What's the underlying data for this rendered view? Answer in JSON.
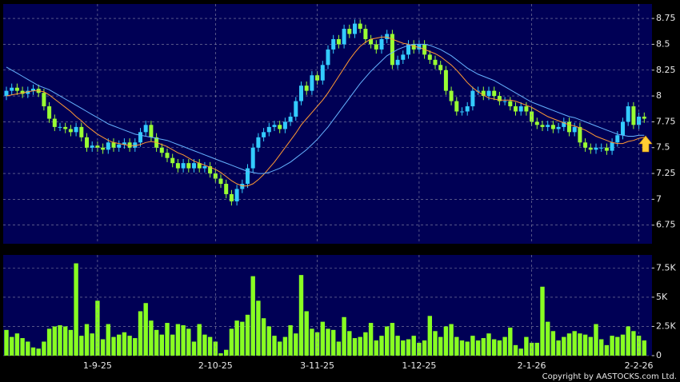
{
  "chart_data": [
    {
      "type": "candlestick",
      "up_color": "#33ccff",
      "down_color": "#99ff33",
      "open": [
        8.0,
        8.05,
        8.08,
        8.05,
        8.02,
        8.05,
        8.07,
        8.03,
        7.9,
        7.78,
        7.7,
        7.7,
        7.68,
        7.65,
        7.7,
        7.6,
        7.5,
        7.52,
        7.5,
        7.48,
        7.55,
        7.5,
        7.53,
        7.55,
        7.5,
        7.55,
        7.65,
        7.72,
        7.6,
        7.5,
        7.45,
        7.4,
        7.35,
        7.3,
        7.35,
        7.3,
        7.35,
        7.3,
        7.32,
        7.25,
        7.2,
        7.15,
        7.05,
        6.98,
        7.1,
        7.15,
        7.3,
        7.5,
        7.6,
        7.65,
        7.7,
        7.72,
        7.68,
        7.75,
        7.8,
        7.95,
        8.1,
        8.05,
        8.2,
        8.15,
        8.3,
        8.45,
        8.55,
        8.5,
        8.65,
        8.6,
        8.7,
        8.65,
        8.55,
        8.5,
        8.45,
        8.55,
        8.6,
        8.3,
        8.35,
        8.4,
        8.5,
        8.45,
        8.5,
        8.4,
        8.35,
        8.3,
        8.25,
        8.05,
        7.95,
        7.85,
        7.85,
        7.9,
        8.05,
        8.05,
        8.0,
        8.05,
        8.0,
        7.95,
        7.95,
        7.9,
        7.85,
        7.9,
        7.85,
        7.75,
        7.72,
        7.7,
        7.72,
        7.68,
        7.7,
        7.75,
        7.65,
        7.7,
        7.55,
        7.5,
        7.48,
        7.5,
        7.5,
        7.47,
        7.55,
        7.62,
        7.75,
        7.9,
        7.72,
        7.8
      ],
      "high": [
        8.09,
        8.12,
        8.12,
        8.09,
        8.09,
        8.11,
        8.11,
        8.07,
        7.94,
        7.82,
        7.74,
        7.74,
        7.72,
        7.74,
        7.74,
        7.64,
        7.56,
        7.56,
        7.54,
        7.59,
        7.59,
        7.57,
        7.59,
        7.59,
        7.59,
        7.69,
        7.76,
        7.76,
        7.64,
        7.54,
        7.49,
        7.44,
        7.39,
        7.39,
        7.39,
        7.39,
        7.39,
        7.36,
        7.36,
        7.29,
        7.24,
        7.19,
        7.09,
        7.14,
        7.19,
        7.34,
        7.54,
        7.64,
        7.69,
        7.74,
        7.76,
        7.76,
        7.79,
        7.84,
        7.99,
        8.14,
        8.14,
        8.24,
        8.24,
        8.34,
        8.49,
        8.59,
        8.59,
        8.69,
        8.69,
        8.74,
        8.74,
        8.69,
        8.59,
        8.54,
        8.59,
        8.64,
        8.64,
        8.39,
        8.44,
        8.54,
        8.54,
        8.54,
        8.54,
        8.44,
        8.39,
        8.34,
        8.29,
        8.09,
        7.99,
        7.89,
        7.94,
        8.09,
        8.09,
        8.09,
        8.09,
        8.09,
        8.04,
        7.99,
        7.99,
        7.94,
        7.94,
        7.94,
        7.89,
        7.79,
        7.76,
        7.76,
        7.76,
        7.74,
        7.79,
        7.79,
        7.74,
        7.74,
        7.59,
        7.54,
        7.54,
        7.54,
        7.54,
        7.59,
        7.66,
        7.79,
        7.94,
        7.94,
        7.84,
        7.84
      ],
      "low": [
        7.96,
        8.01,
        8.01,
        7.98,
        7.98,
        8.01,
        7.99,
        7.86,
        7.74,
        7.66,
        7.66,
        7.64,
        7.61,
        7.61,
        7.56,
        7.46,
        7.46,
        7.46,
        7.44,
        7.44,
        7.46,
        7.46,
        7.49,
        7.46,
        7.46,
        7.51,
        7.61,
        7.56,
        7.46,
        7.41,
        7.36,
        7.31,
        7.26,
        7.26,
        7.26,
        7.26,
        7.26,
        7.26,
        7.21,
        7.16,
        7.11,
        7.01,
        6.94,
        6.94,
        7.06,
        7.11,
        7.26,
        7.46,
        7.56,
        7.61,
        7.66,
        7.64,
        7.64,
        7.71,
        7.76,
        7.91,
        8.01,
        8.01,
        8.11,
        8.11,
        8.26,
        8.41,
        8.46,
        8.46,
        8.56,
        8.56,
        8.61,
        8.51,
        8.46,
        8.41,
        8.41,
        8.51,
        8.26,
        8.26,
        8.31,
        8.36,
        8.41,
        8.41,
        8.36,
        8.31,
        8.26,
        8.21,
        8.01,
        7.91,
        7.81,
        7.81,
        7.81,
        7.86,
        8.01,
        7.96,
        7.96,
        7.96,
        7.91,
        7.91,
        7.86,
        7.81,
        7.81,
        7.81,
        7.71,
        7.68,
        7.66,
        7.66,
        7.64,
        7.64,
        7.66,
        7.61,
        7.61,
        7.51,
        7.46,
        7.44,
        7.44,
        7.46,
        7.43,
        7.43,
        7.51,
        7.58,
        7.71,
        7.68,
        7.68,
        7.74
      ],
      "close": [
        8.05,
        8.08,
        8.05,
        8.02,
        8.05,
        8.07,
        8.03,
        7.9,
        7.78,
        7.7,
        7.7,
        7.68,
        7.65,
        7.7,
        7.6,
        7.5,
        7.52,
        7.5,
        7.48,
        7.55,
        7.5,
        7.53,
        7.55,
        7.5,
        7.55,
        7.65,
        7.72,
        7.6,
        7.5,
        7.45,
        7.4,
        7.35,
        7.3,
        7.35,
        7.3,
        7.35,
        7.3,
        7.32,
        7.25,
        7.2,
        7.15,
        7.05,
        6.98,
        7.1,
        7.15,
        7.3,
        7.5,
        7.6,
        7.65,
        7.7,
        7.72,
        7.68,
        7.75,
        7.8,
        7.95,
        8.1,
        8.05,
        8.2,
        8.15,
        8.3,
        8.45,
        8.55,
        8.5,
        8.65,
        8.6,
        8.7,
        8.65,
        8.55,
        8.5,
        8.45,
        8.55,
        8.6,
        8.3,
        8.35,
        8.4,
        8.5,
        8.45,
        8.5,
        8.4,
        8.35,
        8.3,
        8.25,
        8.05,
        7.95,
        7.85,
        7.85,
        7.9,
        8.05,
        8.05,
        8.0,
        8.05,
        8.0,
        7.95,
        7.95,
        7.9,
        7.85,
        7.9,
        7.85,
        7.75,
        7.72,
        7.7,
        7.72,
        7.68,
        7.7,
        7.75,
        7.65,
        7.7,
        7.55,
        7.5,
        7.48,
        7.5,
        7.5,
        7.47,
        7.55,
        7.62,
        7.75,
        7.9,
        7.72,
        7.8,
        7.78
      ],
      "series": [
        {
          "color": "#ff9933",
          "values": [
            8.0,
            8.01,
            8.02,
            8.03,
            8.04,
            8.05,
            8.05,
            8.04,
            8.01,
            7.97,
            7.93,
            7.89,
            7.85,
            7.8,
            7.76,
            7.71,
            7.67,
            7.63,
            7.6,
            7.57,
            7.55,
            7.54,
            7.53,
            7.52,
            7.52,
            7.53,
            7.55,
            7.56,
            7.55,
            7.53,
            7.51,
            7.48,
            7.45,
            7.43,
            7.4,
            7.37,
            7.35,
            7.33,
            7.31,
            7.29,
            7.26,
            7.22,
            7.18,
            7.15,
            7.13,
            7.13,
            7.15,
            7.19,
            7.24,
            7.3,
            7.36,
            7.43,
            7.5,
            7.57,
            7.64,
            7.72,
            7.78,
            7.84,
            7.9,
            7.96,
            8.03,
            8.11,
            8.19,
            8.27,
            8.35,
            8.42,
            8.48,
            8.52,
            8.55,
            8.56,
            8.57,
            8.57,
            8.55,
            8.53,
            8.51,
            8.5,
            8.48,
            8.47,
            8.45,
            8.43,
            8.41,
            8.38,
            8.34,
            8.3,
            8.25,
            8.19,
            8.13,
            8.08,
            8.04,
            8.01,
            7.98,
            7.97,
            7.96,
            7.96,
            7.96,
            7.95,
            7.93,
            7.91,
            7.89,
            7.86,
            7.83,
            7.8,
            7.78,
            7.76,
            7.74,
            7.72,
            7.71,
            7.69,
            7.67,
            7.64,
            7.61,
            7.59,
            7.57,
            7.55,
            7.54,
            7.54,
            7.56,
            7.57,
            7.59,
            7.6
          ]
        },
        {
          "color": "#66b3ff",
          "values": [
            8.28,
            8.25,
            8.22,
            8.19,
            8.16,
            8.13,
            8.1,
            8.08,
            8.06,
            8.03,
            8.0,
            7.97,
            7.94,
            7.91,
            7.88,
            7.85,
            7.82,
            7.79,
            7.76,
            7.73,
            7.71,
            7.69,
            7.67,
            7.65,
            7.63,
            7.62,
            7.61,
            7.6,
            7.59,
            7.58,
            7.57,
            7.55,
            7.53,
            7.51,
            7.49,
            7.47,
            7.45,
            7.43,
            7.41,
            7.39,
            7.37,
            7.35,
            7.33,
            7.31,
            7.29,
            7.27,
            7.26,
            7.25,
            7.25,
            7.26,
            7.28,
            7.3,
            7.33,
            7.36,
            7.4,
            7.44,
            7.48,
            7.53,
            7.58,
            7.64,
            7.7,
            7.77,
            7.84,
            7.91,
            7.98,
            8.05,
            8.12,
            8.18,
            8.24,
            8.29,
            8.34,
            8.39,
            8.42,
            8.45,
            8.47,
            8.49,
            8.5,
            8.5,
            8.5,
            8.49,
            8.47,
            8.45,
            8.42,
            8.39,
            8.35,
            8.31,
            8.27,
            8.24,
            8.21,
            8.19,
            8.17,
            8.15,
            8.12,
            8.09,
            8.06,
            8.03,
            8.0,
            7.97,
            7.94,
            7.92,
            7.9,
            7.88,
            7.86,
            7.84,
            7.82,
            7.8,
            7.79,
            7.77,
            7.75,
            7.73,
            7.71,
            7.69,
            7.67,
            7.65,
            7.63,
            7.62,
            7.61,
            7.61,
            7.62,
            7.62
          ]
        }
      ],
      "ylim": [
        6.57,
        8.89
      ],
      "yticks": [
        6.75,
        7,
        7.25,
        7.5,
        7.75,
        8,
        8.25,
        8.5,
        8.75
      ],
      "grid": true
    },
    {
      "type": "bar",
      "color": "#88ff22",
      "categories": [
        null,
        null,
        null,
        null,
        null,
        null,
        null,
        null,
        null,
        null,
        null,
        null,
        null,
        null,
        null,
        null,
        null,
        "1-9-25",
        null,
        null,
        null,
        null,
        null,
        null,
        null,
        null,
        null,
        null,
        null,
        null,
        null,
        null,
        null,
        null,
        null,
        null,
        null,
        null,
        null,
        "2-10-25",
        null,
        null,
        null,
        null,
        null,
        null,
        null,
        null,
        null,
        null,
        null,
        null,
        null,
        null,
        null,
        null,
        null,
        null,
        "3-11-25",
        null,
        null,
        null,
        null,
        null,
        null,
        null,
        null,
        null,
        null,
        null,
        null,
        null,
        null,
        null,
        null,
        null,
        null,
        "1-12-25",
        null,
        null,
        null,
        null,
        null,
        null,
        null,
        null,
        null,
        null,
        null,
        null,
        null,
        null,
        null,
        null,
        null,
        null,
        null,
        null,
        "2-1-26",
        null,
        null,
        null,
        null,
        null,
        null,
        null,
        null,
        null,
        null,
        null,
        null,
        null,
        null,
        null,
        null,
        null,
        null,
        null,
        "2-2-26",
        null
      ],
      "values": [
        2200,
        1600,
        1900,
        1500,
        1200,
        700,
        600,
        1200,
        2300,
        2500,
        2600,
        2500,
        2200,
        7900,
        1700,
        2700,
        1900,
        4700,
        1400,
        2700,
        1600,
        1800,
        2000,
        1700,
        1500,
        3800,
        4500,
        3000,
        2200,
        1800,
        2800,
        1800,
        2700,
        2600,
        2300,
        1200,
        2700,
        1800,
        1600,
        1200,
        200,
        500,
        2300,
        3000,
        2900,
        3500,
        6800,
        4700,
        3200,
        2500,
        1700,
        1200,
        1600,
        2600,
        1900,
        6900,
        3800,
        2300,
        2000,
        2900,
        2300,
        2200,
        1200,
        3300,
        2100,
        1500,
        1600,
        2000,
        2800,
        1300,
        1700,
        2500,
        2800,
        1700,
        1300,
        1400,
        1700,
        1100,
        1300,
        3400,
        2100,
        1600,
        2500,
        2700,
        1600,
        1300,
        1200,
        1700,
        1300,
        1500,
        1900,
        1400,
        1300,
        1600,
        2400,
        900,
        600,
        1600,
        1100,
        1100,
        5900,
        2900,
        2100,
        1300,
        1600,
        1900,
        2100,
        1900,
        1800,
        1600,
        2700,
        1400,
        900,
        1700,
        1600,
        1800,
        2500,
        2100,
        1700,
        1300
      ],
      "ylim": [
        0,
        8620
      ],
      "yticks": [
        0,
        {
          "value": 2500,
          "label": "2.5K"
        },
        {
          "value": 5000,
          "label": "5K"
        },
        {
          "value": 7500,
          "label": "7.5K"
        }
      ],
      "grid": true
    }
  ],
  "copyright": "Copyright by AASTOCKS.com Ltd."
}
